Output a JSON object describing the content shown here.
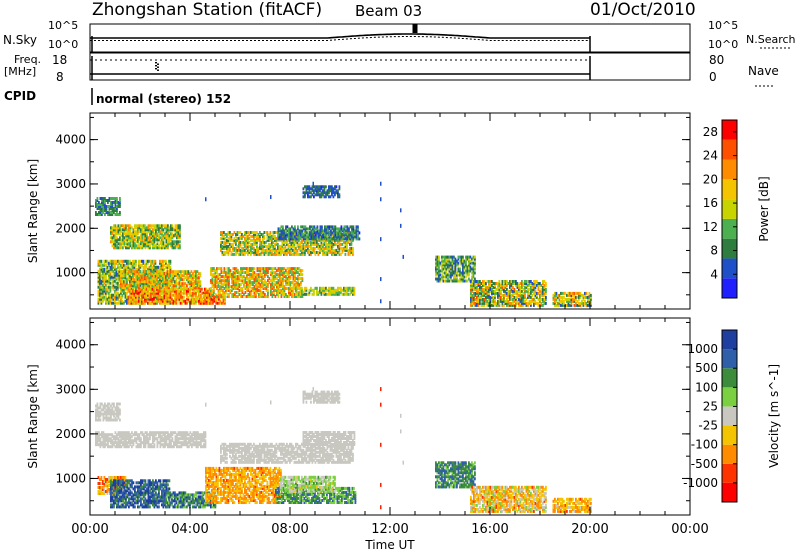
{
  "header": {
    "station": "Zhongshan Station (fitACF)",
    "beam": "Beam 03",
    "date": "01/Oct/2010"
  },
  "nsky_panel": {
    "left_label": "N.Sky",
    "right_label": "N.Search",
    "left_ticks": [
      "10^5",
      "10^0"
    ],
    "right_ticks": [
      "10^5",
      "10^0"
    ]
  },
  "freq_panel": {
    "left_label_line1": "Freq.",
    "left_label_line2": "[MHz]",
    "right_label": "Nave",
    "left_ticks": [
      "18",
      "8"
    ],
    "right_ticks": [
      "80",
      "0"
    ]
  },
  "cpid": {
    "label": "CPID",
    "mode_text": "normal (stereo) 152"
  },
  "colors": {
    "power": [
      "#1f1fff",
      "#2050c8",
      "#2e7d3e",
      "#4caf50",
      "#c8d400",
      "#f5c400",
      "#ff8c00",
      "#ff5000",
      "#ff0000"
    ],
    "velocity": [
      "#ff0000",
      "#ff3300",
      "#ff8c00",
      "#f5c400",
      "#c8c8c0",
      "#7ad040",
      "#3c8c3c",
      "#2f5fa8",
      "#1f3fa0"
    ]
  },
  "chart_data": [
    {
      "type": "heatmap",
      "name": "power_panel",
      "xlabel": "",
      "ylabel": "Slant Range [km]",
      "xlim": [
        0,
        24
      ],
      "ylim": [
        180,
        4600
      ],
      "yticks": [
        "1000",
        "2000",
        "3000",
        "4000"
      ],
      "colorbar": {
        "label": "Power [dB]",
        "ticks": [
          "4",
          "8",
          "12",
          "16",
          "20",
          "24",
          "28"
        ],
        "range": [
          0,
          30
        ]
      },
      "blobs": [
        {
          "t0": 0.3,
          "t1": 3.2,
          "r0": 300,
          "r1": 1250,
          "v": 13,
          "var": 8
        },
        {
          "t0": 0.2,
          "t1": 1.2,
          "r0": 2300,
          "r1": 2700,
          "v": 9,
          "var": 4
        },
        {
          "t0": 0.8,
          "t1": 3.6,
          "r0": 1550,
          "r1": 2050,
          "v": 14,
          "var": 7
        },
        {
          "t0": 1.5,
          "t1": 4.8,
          "r0": 300,
          "r1": 650,
          "v": 21,
          "var": 8
        },
        {
          "t0": 1.2,
          "t1": 4.4,
          "r0": 650,
          "r1": 1050,
          "v": 17,
          "var": 8
        },
        {
          "t0": 4.4,
          "t1": 5.4,
          "r0": 300,
          "r1": 500,
          "v": 22,
          "var": 7
        },
        {
          "t0": 4.8,
          "t1": 8.5,
          "r0": 450,
          "r1": 1100,
          "v": 18,
          "var": 8
        },
        {
          "t0": 5.2,
          "t1": 10.5,
          "r0": 1400,
          "r1": 1900,
          "v": 15,
          "var": 8
        },
        {
          "t0": 7.5,
          "t1": 10.8,
          "r0": 1750,
          "r1": 2050,
          "v": 8,
          "var": 5
        },
        {
          "t0": 8.2,
          "t1": 10.6,
          "r0": 500,
          "r1": 650,
          "v": 14,
          "var": 5
        },
        {
          "t0": 8.5,
          "t1": 10.0,
          "r0": 2700,
          "r1": 2950,
          "v": 6,
          "var": 3
        },
        {
          "t0": 13.8,
          "t1": 15.4,
          "r0": 800,
          "r1": 1350,
          "v": 11,
          "var": 7
        },
        {
          "t0": 15.2,
          "t1": 18.2,
          "r0": 250,
          "r1": 800,
          "v": 14,
          "var": 10
        },
        {
          "t0": 18.5,
          "t1": 20.0,
          "r0": 250,
          "r1": 550,
          "v": 15,
          "var": 10
        }
      ]
    },
    {
      "type": "heatmap",
      "name": "velocity_panel",
      "xlabel": "Time UT",
      "ylabel": "Slant Range [km]",
      "xlim": [
        0,
        24
      ],
      "xticks": [
        "00:00",
        "04:00",
        "08:00",
        "12:00",
        "16:00",
        "20:00",
        "00:00"
      ],
      "ylim": [
        180,
        4600
      ],
      "yticks": [
        "1000",
        "2000",
        "3000",
        "4000"
      ],
      "colorbar": {
        "label": "Velocity [m s^-1]",
        "ticks": [
          "-1000",
          "-500",
          "-100",
          "-25",
          "25",
          "100",
          "500",
          "1000"
        ]
      },
      "blobs": [
        {
          "t0": 0.2,
          "t1": 4.6,
          "r0": 1700,
          "r1": 2050,
          "v": 4,
          "var": 0
        },
        {
          "t0": 0.2,
          "t1": 1.2,
          "r0": 2300,
          "r1": 2700,
          "v": 4,
          "var": 0
        },
        {
          "t0": 0.3,
          "t1": 1.4,
          "r0": 650,
          "r1": 1050,
          "v": 2.5,
          "var": 1.5
        },
        {
          "t0": 0.8,
          "t1": 3.2,
          "r0": 350,
          "r1": 950,
          "v": 7.2,
          "var": 1.5
        },
        {
          "t0": 3.0,
          "t1": 5.0,
          "r0": 350,
          "r1": 700,
          "v": 6.5,
          "var": 2
        },
        {
          "t0": 4.6,
          "t1": 7.6,
          "r0": 450,
          "r1": 1250,
          "v": 2.4,
          "var": 1
        },
        {
          "t0": 5.2,
          "t1": 10.5,
          "r0": 1350,
          "r1": 1800,
          "v": 4,
          "var": 0
        },
        {
          "t0": 8.5,
          "t1": 10.6,
          "r0": 1750,
          "r1": 2050,
          "v": 4,
          "var": 0
        },
        {
          "t0": 7.4,
          "t1": 10.6,
          "r0": 450,
          "r1": 800,
          "v": 5.8,
          "var": 1.2
        },
        {
          "t0": 7.6,
          "t1": 9.8,
          "r0": 700,
          "r1": 1050,
          "v": 4.5,
          "var": 1.2
        },
        {
          "t0": 8.5,
          "t1": 10.0,
          "r0": 2700,
          "r1": 2950,
          "v": 4,
          "var": 0
        },
        {
          "t0": 13.8,
          "t1": 15.4,
          "r0": 800,
          "r1": 1350,
          "v": 6.2,
          "var": 1
        },
        {
          "t0": 15.2,
          "t1": 18.2,
          "r0": 250,
          "r1": 800,
          "v": 3.2,
          "var": 1.8
        },
        {
          "t0": 18.5,
          "t1": 20.0,
          "r0": 250,
          "r1": 550,
          "v": 2.6,
          "var": 1.2
        }
      ]
    }
  ]
}
